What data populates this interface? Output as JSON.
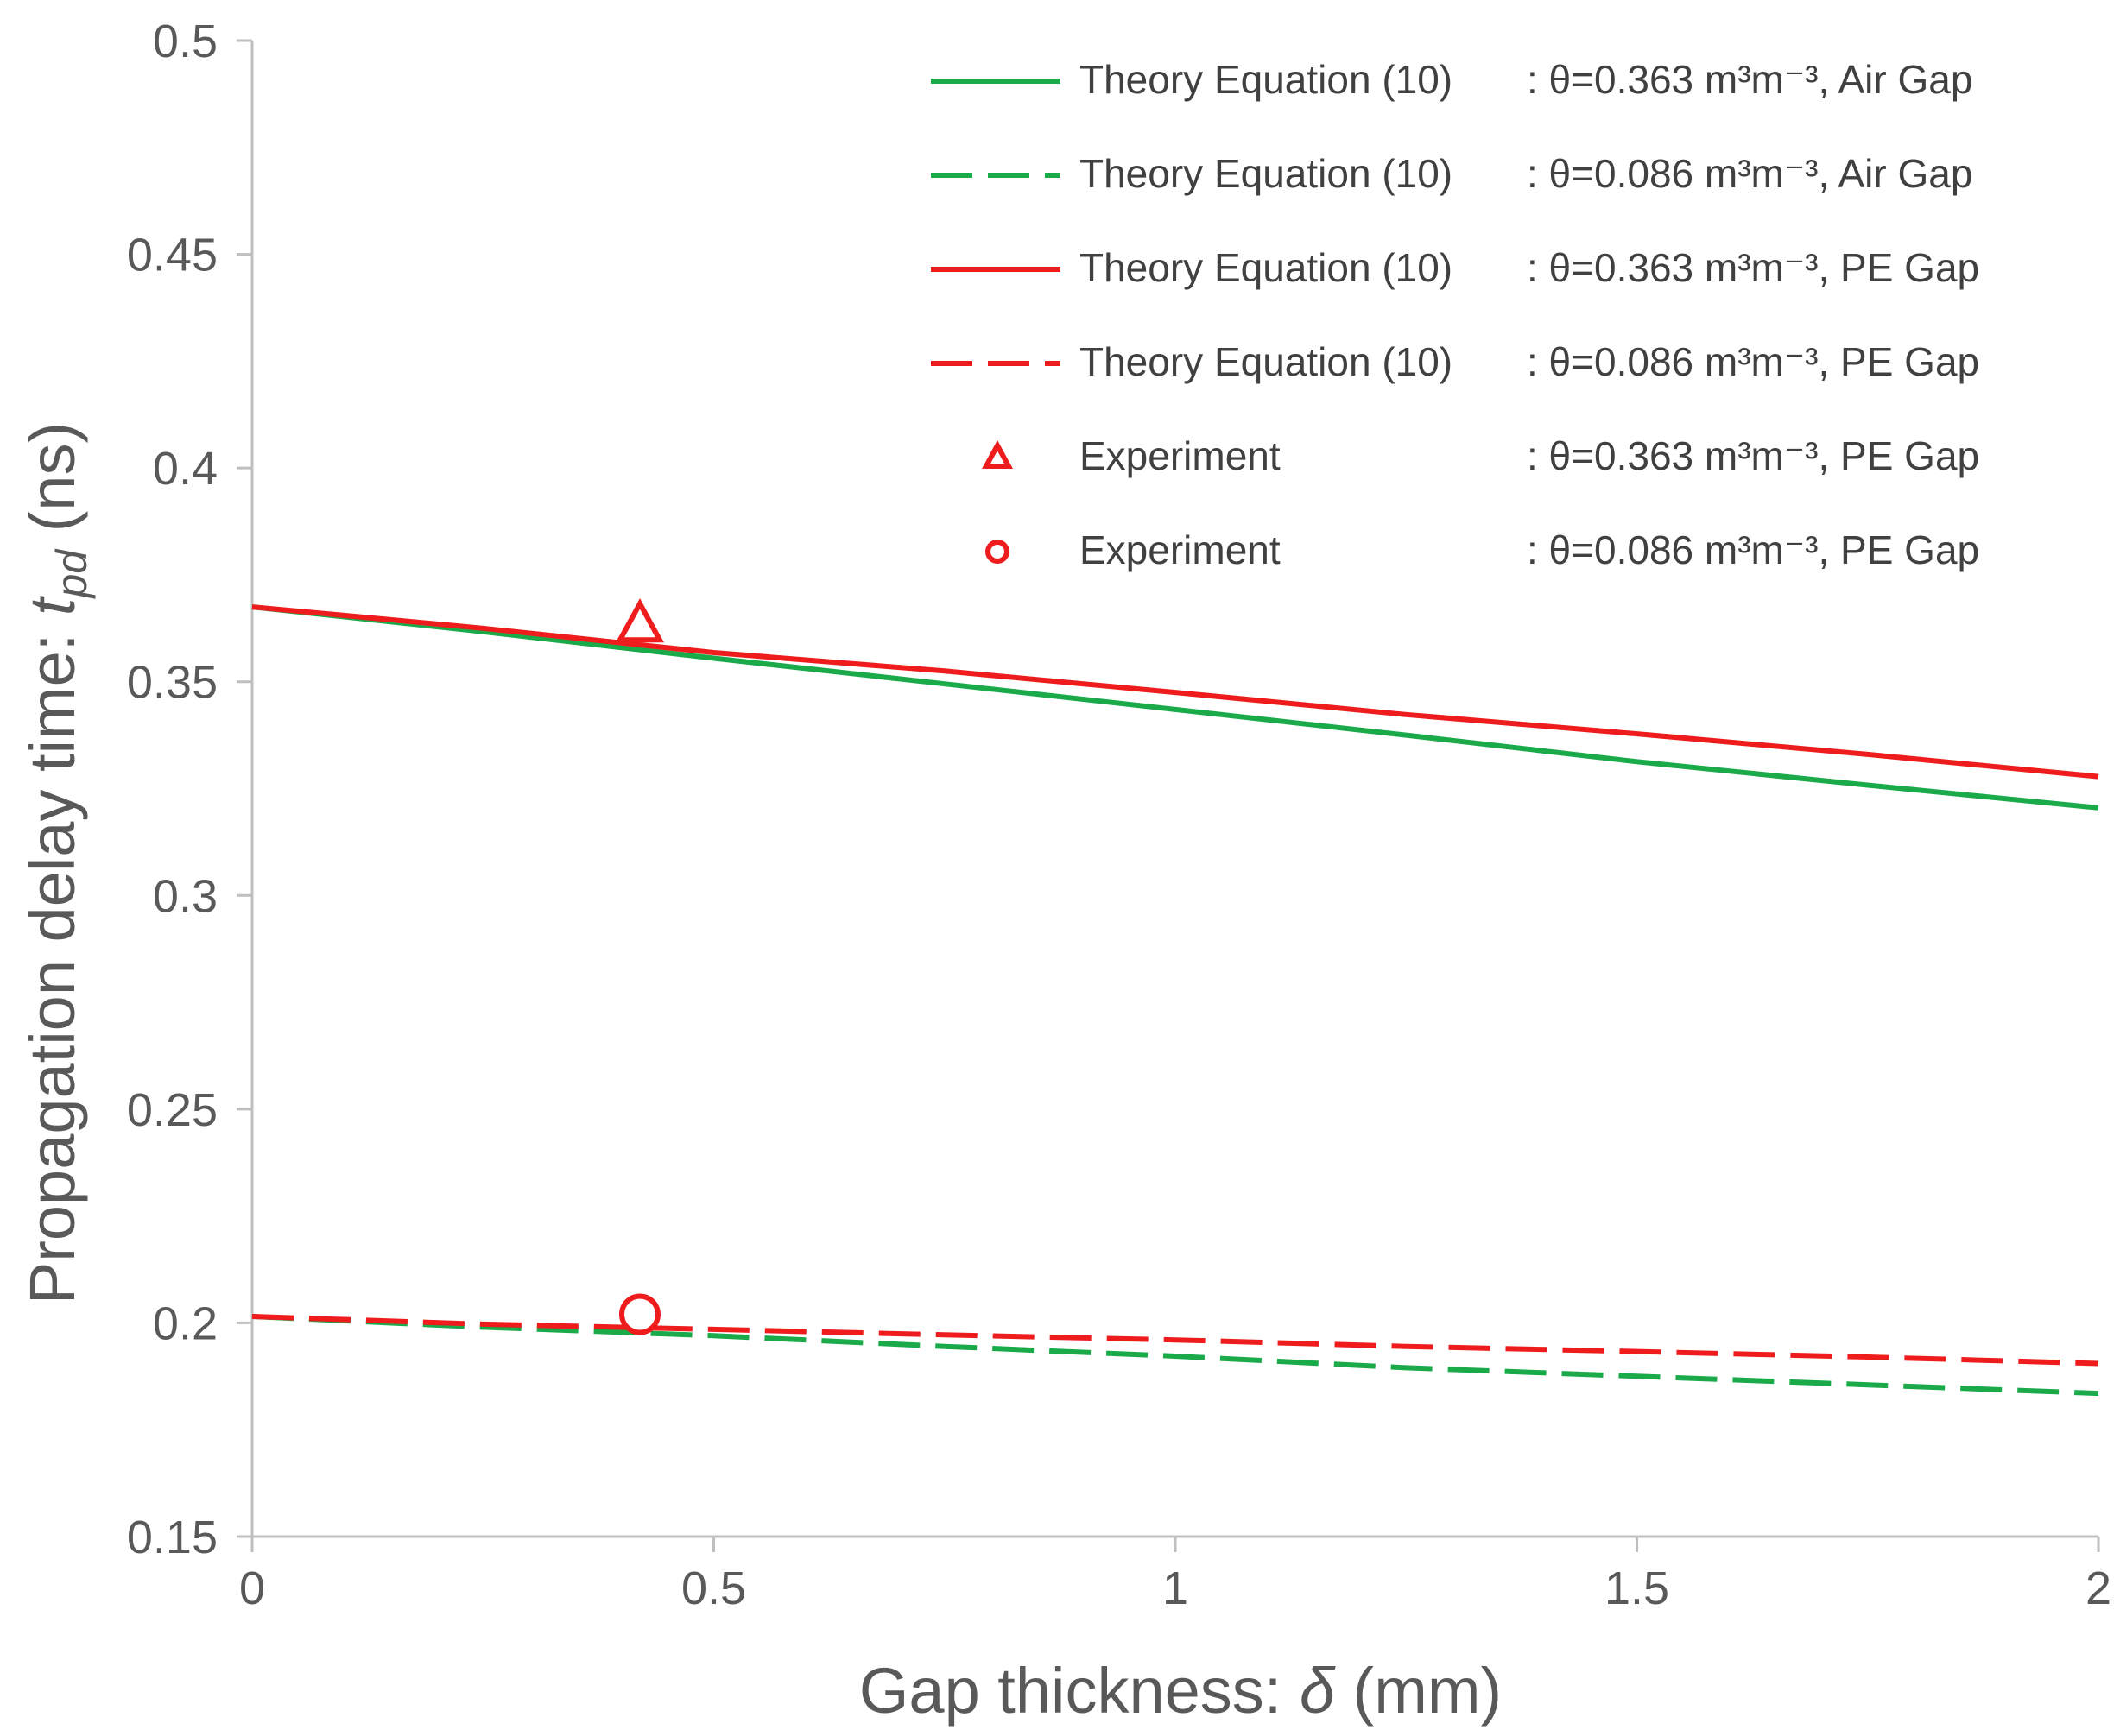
{
  "chart_data": {
    "type": "line",
    "title": "",
    "xlabel": {
      "main": "Gap thickness: ",
      "symbol": "δ",
      "unit": " (mm)"
    },
    "ylabel": {
      "main": "Propagation delay time: ",
      "symbol": "t",
      "subscript": "pd",
      "unit": " (ns)"
    },
    "xlim": [
      0,
      2
    ],
    "ylim": [
      0.15,
      0.5
    ],
    "xticks": [
      0,
      0.5,
      1,
      1.5,
      2
    ],
    "xtick_labels": [
      "0",
      "0.5",
      "1",
      "1.5",
      "2"
    ],
    "yticks": [
      0.15,
      0.2,
      0.25,
      0.3,
      0.35,
      0.4,
      0.45,
      0.5
    ],
    "ytick_labels": [
      "0.15",
      "0.2",
      "0.25",
      "0.3",
      "0.35",
      "0.4",
      "0.45",
      "0.5"
    ],
    "grid": false,
    "legend_position": "top-right",
    "series": [
      {
        "name": "Theory Equation (10)",
        "condition": ": θ=0.363 m³m⁻³, Air Gap",
        "kind": "line",
        "dash": "solid",
        "color": "#1aaa4a",
        "x": [
          0,
          0.25,
          0.5,
          0.75,
          1.0,
          1.25,
          1.5,
          1.75,
          2.0
        ],
        "y": [
          0.3675,
          0.3617,
          0.3555,
          0.3495,
          0.3435,
          0.3375,
          0.3313,
          0.3258,
          0.3205
        ]
      },
      {
        "name": "Theory Equation (10)",
        "condition": ": θ=0.086 m³m⁻³, Air Gap",
        "kind": "line",
        "dash": "dashed",
        "color": "#1aaa4a",
        "x": [
          0,
          0.25,
          0.5,
          0.75,
          1.0,
          1.25,
          1.5,
          1.75,
          2.0
        ],
        "y": [
          0.2015,
          0.199,
          0.197,
          0.1945,
          0.1922,
          0.1895,
          0.1875,
          0.1855,
          0.1835
        ]
      },
      {
        "name": "Theory Equation (10)",
        "condition": ": θ=0.363 m³m⁻³, PE Gap",
        "kind": "line",
        "dash": "solid",
        "color": "#ee1c1c",
        "x": [
          0,
          0.25,
          0.5,
          0.75,
          1.0,
          1.25,
          1.5,
          1.75,
          2.0
        ],
        "y": [
          0.3675,
          0.3625,
          0.3568,
          0.3525,
          0.3475,
          0.3423,
          0.3378,
          0.333,
          0.3278
        ]
      },
      {
        "name": "Theory Equation (10)",
        "condition": ": θ=0.086 m³m⁻³, PE Gap",
        "kind": "line",
        "dash": "dashed",
        "color": "#ee1c1c",
        "x": [
          0,
          0.25,
          0.5,
          0.75,
          1.0,
          1.25,
          1.5,
          1.75,
          2.0
        ],
        "y": [
          0.2015,
          0.1997,
          0.1985,
          0.1972,
          0.196,
          0.1945,
          0.1933,
          0.192,
          0.1905
        ]
      },
      {
        "name": "Experiment",
        "condition": ": θ=0.363 m³m⁻³, PE Gap",
        "kind": "marker",
        "marker": "triangle",
        "color": "#ee1c1c",
        "x": [
          0.42
        ],
        "y": [
          0.363
        ]
      },
      {
        "name": "Experiment",
        "condition": ": θ=0.086 m³m⁻³, PE Gap",
        "kind": "marker",
        "marker": "circle",
        "color": "#ee1c1c",
        "x": [
          0.42
        ],
        "y": [
          0.202
        ]
      }
    ]
  }
}
